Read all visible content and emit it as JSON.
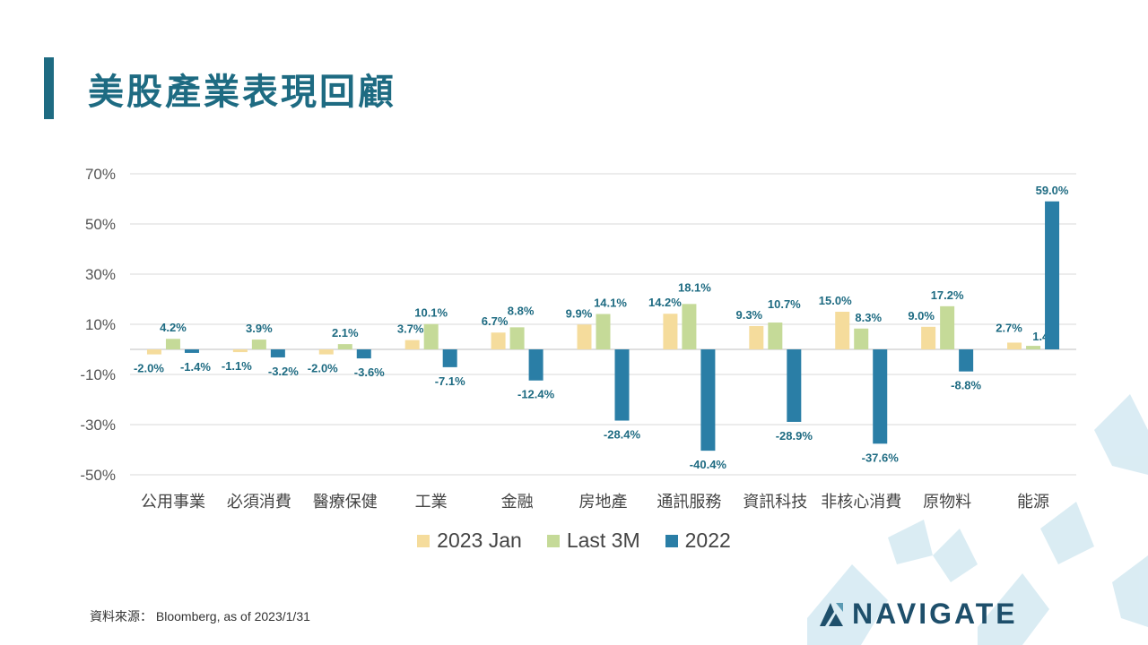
{
  "title": "美股產業表現回顧",
  "source": "資料來源： Bloomberg, as of 2023/1/31",
  "logo": {
    "text": "NAVIGATE"
  },
  "colors": {
    "accent": "#1e6b82",
    "jan": "#f5dc9c",
    "last3m": "#c5da98",
    "y2022": "#2a7ea6",
    "label": "#1e6b82"
  },
  "chart_data": {
    "type": "bar",
    "categories": [
      "公用事業",
      "必須消費",
      "醫療保健",
      "工業",
      "金融",
      "房地產",
      "通訊服務",
      "資訊科技",
      "非核心消費",
      "原物料",
      "能源"
    ],
    "series": [
      {
        "name": "2023 Jan",
        "values": [
          -2.0,
          -1.1,
          -2.0,
          3.7,
          6.7,
          9.9,
          14.2,
          9.3,
          15.0,
          9.0,
          2.7
        ],
        "labels": [
          "-2.0%",
          "-1.1%",
          "-2.0%",
          "3.7%",
          "6.7%",
          "9.9%",
          "14.2%",
          "9.3%",
          "15.0%",
          "9.0%",
          "2.7%"
        ]
      },
      {
        "name": "Last 3M",
        "values": [
          4.2,
          3.9,
          2.1,
          10.1,
          8.8,
          14.1,
          18.1,
          10.7,
          8.3,
          17.2,
          1.4
        ],
        "labels": [
          "4.2%",
          "3.9%",
          "2.1%",
          "10.1%",
          "8.8%",
          "14.1%",
          "18.1%",
          "10.7%",
          "8.3%",
          "17.2%",
          "1.4%"
        ]
      },
      {
        "name": "2022",
        "values": [
          -1.4,
          -3.2,
          -3.6,
          -7.1,
          -12.4,
          -28.4,
          -40.4,
          -28.9,
          -37.6,
          -8.8,
          59.0
        ],
        "labels": [
          "-1.4%",
          "-3.2%",
          "-3.6%",
          "-7.1%",
          "-12.4%",
          "-28.4%",
          "-40.4%",
          "-28.9%",
          "-37.6%",
          "-8.8%",
          "59.0%"
        ]
      }
    ],
    "yticks": [
      70,
      50,
      30,
      10,
      -10,
      -30,
      -50
    ],
    "ytick_labels": [
      "70%",
      "50%",
      "30%",
      "10%",
      "-10%",
      "-30%",
      "-50%"
    ],
    "ylim": [
      -50,
      70
    ],
    "grid": true,
    "legend_position": "bottom"
  }
}
